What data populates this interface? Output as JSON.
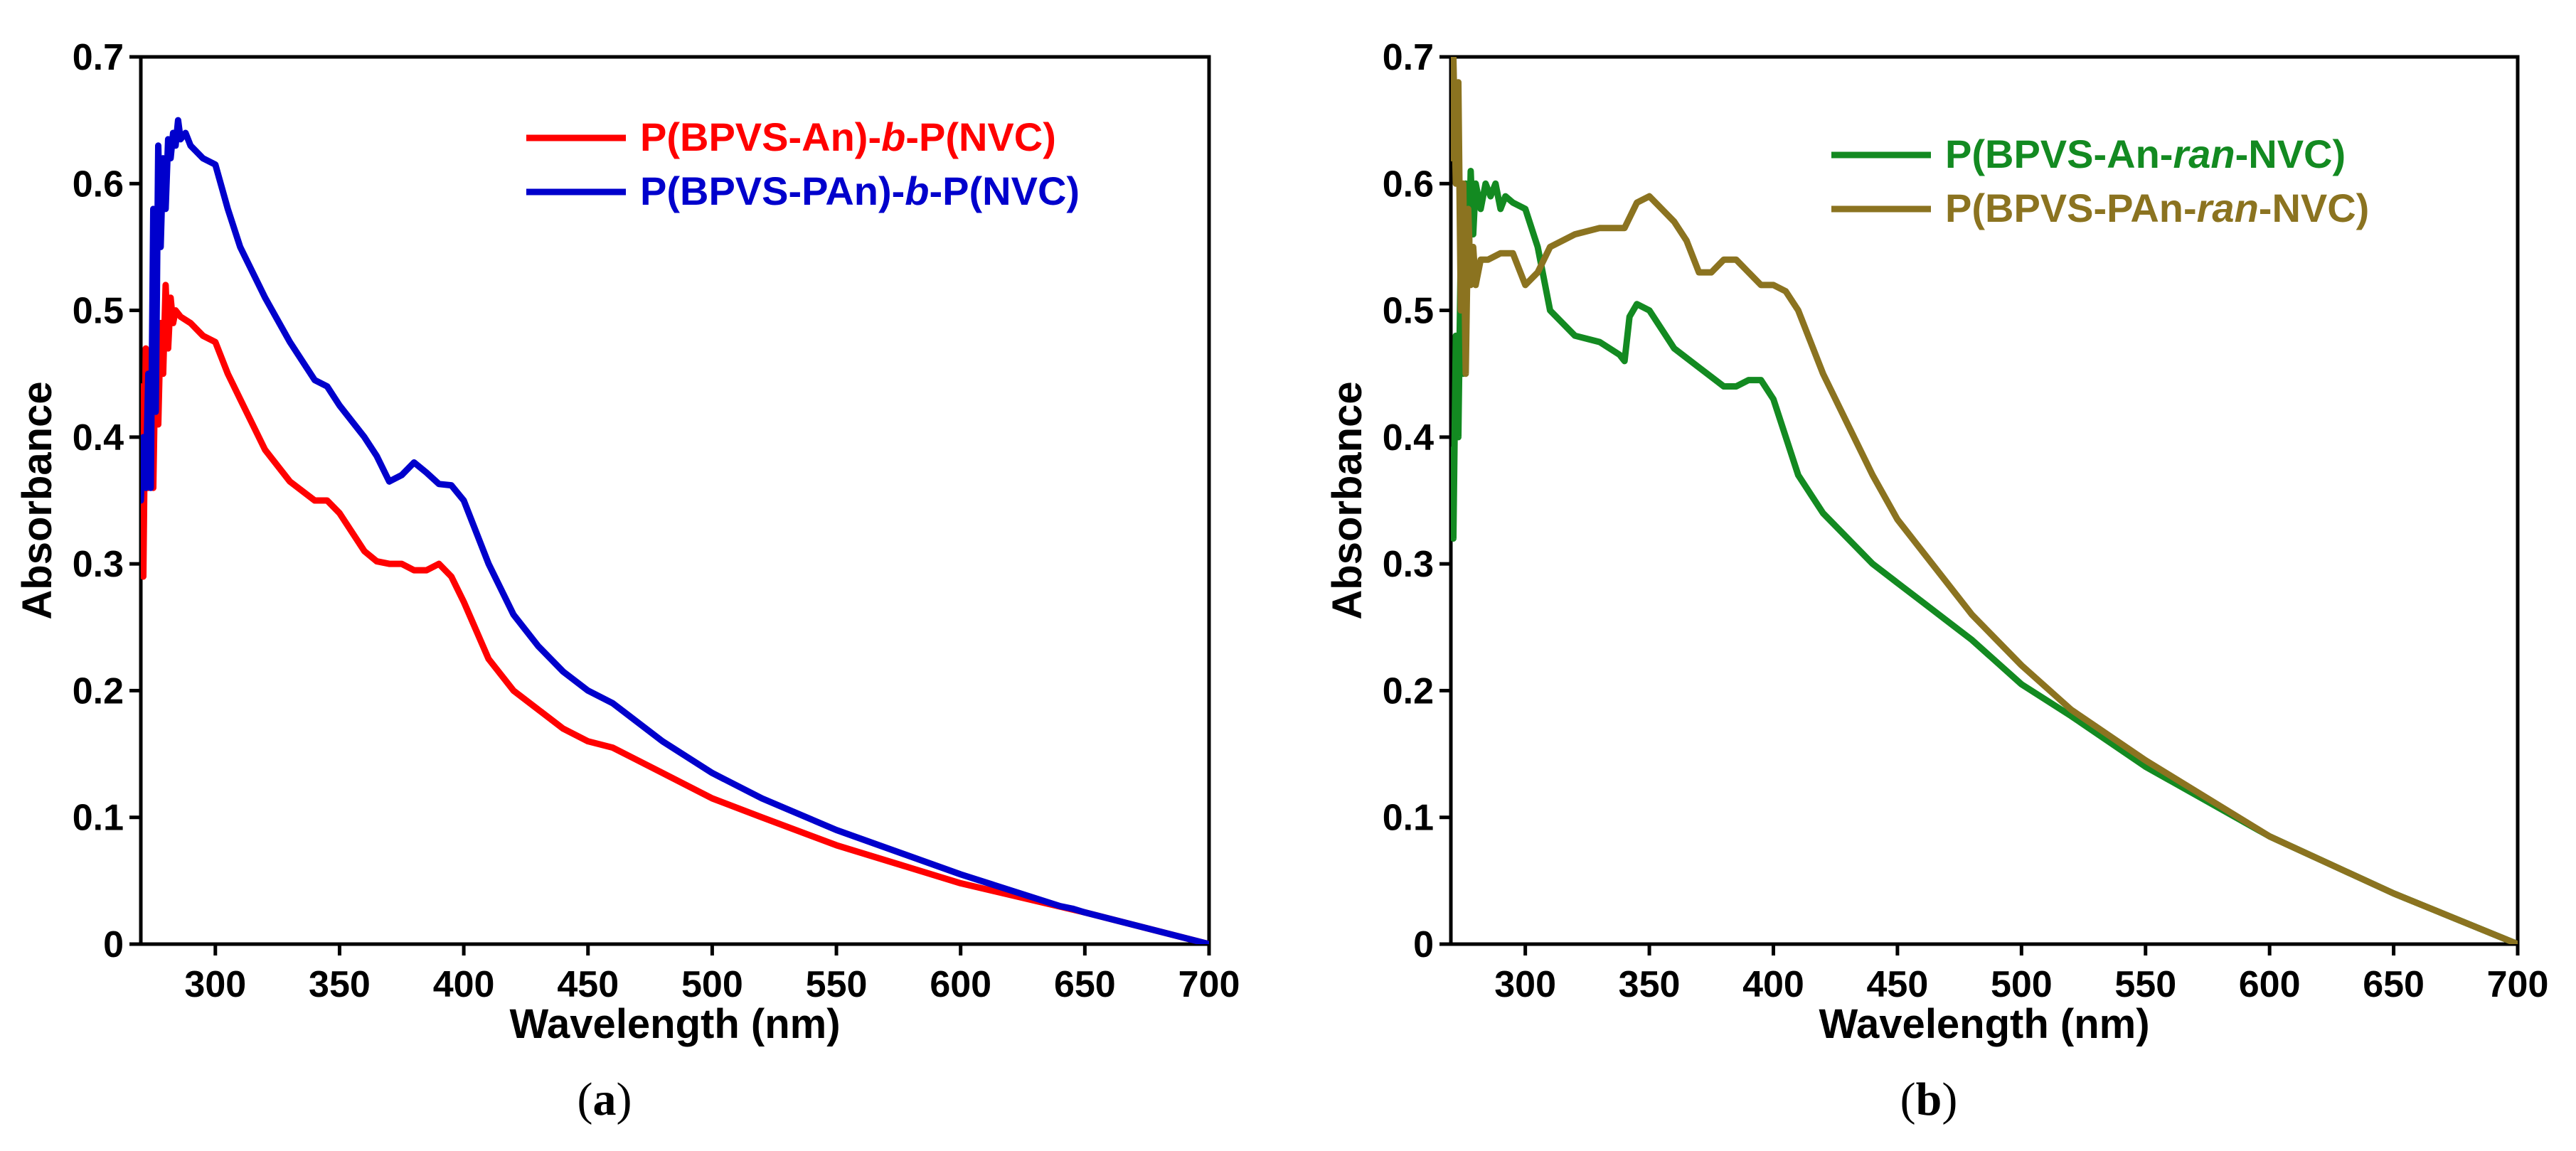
{
  "chart_data": [
    {
      "type": "line",
      "panel_label": "(a)",
      "panel_label_parts": [
        "(",
        "a",
        ")"
      ],
      "title": "",
      "xlabel": "Wavelength (nm)",
      "ylabel": "Absorbance",
      "xlim": [
        270,
        700
      ],
      "ylim": [
        0,
        0.7
      ],
      "xticks": [
        300,
        350,
        400,
        450,
        500,
        550,
        600,
        650,
        700
      ],
      "yticks": [
        0,
        0.1,
        0.2,
        0.3,
        0.4,
        0.5,
        0.6,
        0.7
      ],
      "ytick_labels": [
        "0",
        "0.1",
        "0.2",
        "0.3",
        "0.4",
        "0.5",
        "0.6",
        "0.7"
      ],
      "grid": false,
      "legend_position": "top-right",
      "series": [
        {
          "name": "P(BPVS-An)-b-P(NVC)",
          "legend_parts": [
            {
              "text": "P(BPVS-An)-",
              "italic": false
            },
            {
              "text": "b",
              "italic": true
            },
            {
              "text": "-P(NVC)",
              "italic": false
            }
          ],
          "color": "#ff0000",
          "x": [
            270,
            271,
            272,
            273,
            274,
            275,
            276,
            277,
            278,
            279,
            280,
            281,
            282,
            283,
            284,
            286,
            290,
            295,
            300,
            305,
            310,
            320,
            330,
            340,
            345,
            350,
            360,
            365,
            370,
            375,
            380,
            385,
            390,
            395,
            400,
            410,
            420,
            430,
            440,
            450,
            460,
            480,
            500,
            520,
            550,
            600,
            650,
            700
          ],
          "y": [
            0.44,
            0.29,
            0.47,
            0.36,
            0.42,
            0.36,
            0.48,
            0.41,
            0.49,
            0.45,
            0.52,
            0.47,
            0.51,
            0.49,
            0.5,
            0.495,
            0.49,
            0.48,
            0.475,
            0.45,
            0.43,
            0.39,
            0.365,
            0.35,
            0.35,
            0.34,
            0.31,
            0.302,
            0.3,
            0.3,
            0.295,
            0.295,
            0.3,
            0.29,
            0.27,
            0.225,
            0.2,
            0.185,
            0.17,
            0.16,
            0.155,
            0.135,
            0.115,
            0.1,
            0.078,
            0.048,
            0.025,
            0.0
          ]
        },
        {
          "name": "P(BPVS-PAn)-b-P(NVC)",
          "legend_parts": [
            {
              "text": "P(BPVS-PAn)-",
              "italic": false
            },
            {
              "text": "b",
              "italic": true
            },
            {
              "text": "-P(NVC)",
              "italic": false
            }
          ],
          "color": "#0000cc",
          "x": [
            270,
            271,
            272,
            273,
            274,
            275,
            276,
            277,
            278,
            279,
            280,
            281,
            282,
            283,
            284,
            285,
            286,
            288,
            290,
            295,
            300,
            305,
            310,
            320,
            330,
            340,
            345,
            350,
            360,
            365,
            370,
            375,
            380,
            385,
            390,
            395,
            400,
            410,
            420,
            430,
            440,
            450,
            460,
            480,
            500,
            520,
            550,
            600,
            640,
            645,
            650,
            700
          ],
          "y": [
            0.35,
            0.4,
            0.36,
            0.45,
            0.36,
            0.58,
            0.42,
            0.63,
            0.55,
            0.62,
            0.58,
            0.635,
            0.62,
            0.64,
            0.63,
            0.65,
            0.635,
            0.64,
            0.63,
            0.62,
            0.615,
            0.58,
            0.55,
            0.51,
            0.475,
            0.445,
            0.44,
            0.425,
            0.4,
            0.385,
            0.365,
            0.37,
            0.38,
            0.372,
            0.363,
            0.362,
            0.35,
            0.3,
            0.26,
            0.235,
            0.215,
            0.2,
            0.19,
            0.16,
            0.135,
            0.115,
            0.09,
            0.055,
            0.03,
            0.028,
            0.025,
            0.0
          ]
        }
      ]
    },
    {
      "type": "line",
      "panel_label": "(b)",
      "panel_label_parts": [
        "(",
        "b",
        ")"
      ],
      "title": "",
      "xlabel": "Wavelength (nm)",
      "ylabel": "Absorbance",
      "xlim": [
        270,
        700
      ],
      "ylim": [
        0,
        0.7
      ],
      "xticks": [
        300,
        350,
        400,
        450,
        500,
        550,
        600,
        650,
        700
      ],
      "yticks": [
        0,
        0.1,
        0.2,
        0.3,
        0.4,
        0.5,
        0.6,
        0.7
      ],
      "ytick_labels": [
        "0",
        "0.1",
        "0.2",
        "0.3",
        "0.4",
        "0.5",
        "0.6",
        "0.7"
      ],
      "grid": false,
      "legend_position": "top-right",
      "series": [
        {
          "name": "P(BPVS-An-ran-NVC)",
          "legend_parts": [
            {
              "text": "P(BPVS-An-",
              "italic": false
            },
            {
              "text": "ran",
              "italic": true
            },
            {
              "text": "-NVC)",
              "italic": false
            }
          ],
          "color": "#138a21",
          "x": [
            270,
            271,
            272,
            273,
            274,
            275,
            276,
            277,
            278,
            279,
            280,
            282,
            284,
            286,
            288,
            290,
            292,
            295,
            300,
            305,
            310,
            320,
            330,
            338,
            340,
            342,
            345,
            350,
            360,
            370,
            380,
            385,
            390,
            395,
            400,
            410,
            420,
            440,
            450,
            460,
            480,
            500,
            520,
            550,
            600,
            650,
            700
          ],
          "y": [
            0.39,
            0.32,
            0.48,
            0.4,
            0.55,
            0.45,
            0.6,
            0.52,
            0.61,
            0.56,
            0.6,
            0.58,
            0.6,
            0.59,
            0.6,
            0.58,
            0.59,
            0.585,
            0.58,
            0.55,
            0.5,
            0.48,
            0.475,
            0.465,
            0.46,
            0.495,
            0.505,
            0.5,
            0.47,
            0.455,
            0.44,
            0.44,
            0.445,
            0.445,
            0.43,
            0.37,
            0.34,
            0.3,
            0.285,
            0.27,
            0.24,
            0.205,
            0.18,
            0.14,
            0.085,
            0.04,
            0.0
          ]
        },
        {
          "name": "P(BPVS-PAn-ran-NVC)",
          "legend_parts": [
            {
              "text": "P(BPVS-PAn-",
              "italic": false
            },
            {
              "text": "ran",
              "italic": true
            },
            {
              "text": "-NVC)",
              "italic": false
            }
          ],
          "color": "#8b7320",
          "x": [
            270,
            271,
            272,
            273,
            274,
            275,
            276,
            277,
            278,
            279,
            280,
            282,
            285,
            290,
            295,
            300,
            305,
            310,
            320,
            330,
            340,
            345,
            350,
            355,
            360,
            365,
            370,
            375,
            380,
            385,
            390,
            395,
            400,
            405,
            410,
            420,
            430,
            440,
            450,
            460,
            480,
            500,
            520,
            550,
            600,
            650,
            700
          ],
          "y": [
            0.62,
            0.7,
            0.6,
            0.68,
            0.5,
            0.6,
            0.45,
            0.58,
            0.52,
            0.55,
            0.52,
            0.54,
            0.54,
            0.545,
            0.545,
            0.52,
            0.53,
            0.55,
            0.56,
            0.565,
            0.565,
            0.585,
            0.59,
            0.58,
            0.57,
            0.555,
            0.53,
            0.53,
            0.54,
            0.54,
            0.53,
            0.52,
            0.52,
            0.515,
            0.5,
            0.45,
            0.41,
            0.37,
            0.335,
            0.31,
            0.26,
            0.22,
            0.185,
            0.145,
            0.085,
            0.04,
            0.0
          ]
        }
      ]
    }
  ]
}
